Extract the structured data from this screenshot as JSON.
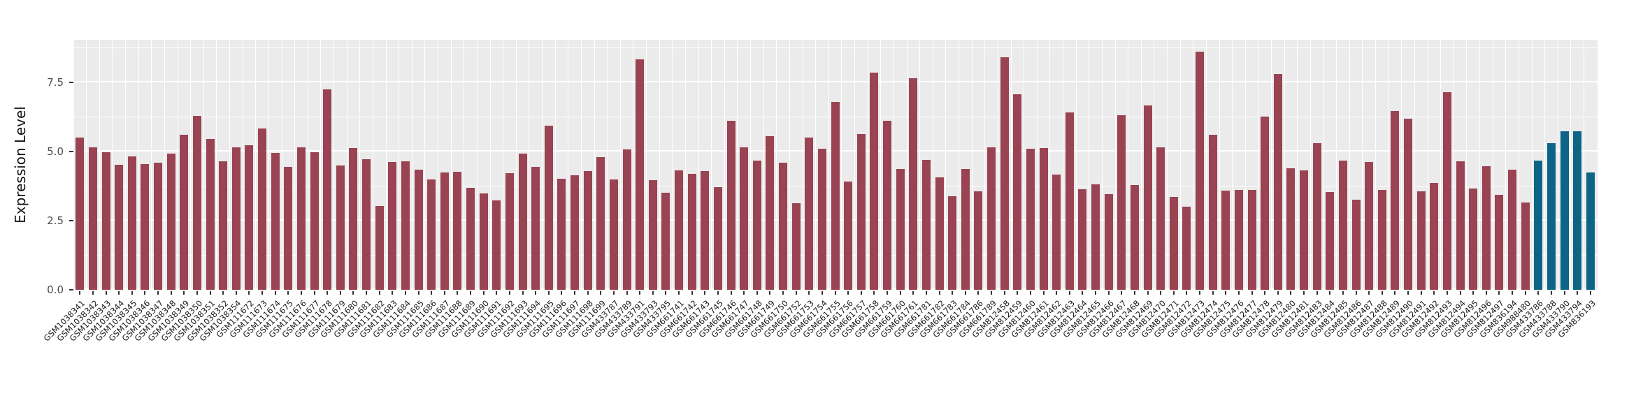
{
  "chart_data": {
    "type": "bar",
    "title": "",
    "xlabel": "",
    "ylabel": "Expression Level",
    "ylim": [
      0,
      9.05
    ],
    "grid": true,
    "legend": false,
    "panel_background": "#EBEBEB",
    "gridline_color": "#FFFFFF",
    "colors": {
      "default": "#9A4352",
      "highlight": "#0C6586"
    },
    "yticks": [
      {
        "label": "0.0",
        "value": 0
      },
      {
        "label": "2.5",
        "value": 2.5
      },
      {
        "label": "5.0",
        "value": 5
      },
      {
        "label": "7.5",
        "value": 7.5
      }
    ],
    "minor_gridlines": [
      1.25,
      3.75,
      6.25,
      8.75
    ],
    "highlighted_categories": [
      "GSM433786",
      "GSM433788",
      "GSM433790",
      "GSM433794",
      "GSM836193"
    ],
    "categories": [
      "GSM1038341",
      "GSM1038342",
      "GSM1038343",
      "GSM1038344",
      "GSM1038345",
      "GSM1038346",
      "GSM1038347",
      "GSM1038348",
      "GSM1038349",
      "GSM1038350",
      "GSM1038351",
      "GSM1038352",
      "GSM1038354",
      "GSM111672",
      "GSM111673",
      "GSM111674",
      "GSM111675",
      "GSM111676",
      "GSM111677",
      "GSM111678",
      "GSM111679",
      "GSM111680",
      "GSM111681",
      "GSM111682",
      "GSM111683",
      "GSM111684",
      "GSM111685",
      "GSM111686",
      "GSM111687",
      "GSM111688",
      "GSM111689",
      "GSM111690",
      "GSM111691",
      "GSM111692",
      "GSM111693",
      "GSM111694",
      "GSM111695",
      "GSM111696",
      "GSM111697",
      "GSM111698",
      "GSM111699",
      "GSM433787",
      "GSM433789",
      "GSM433791",
      "GSM433793",
      "GSM433795",
      "GSM661741",
      "GSM661742",
      "GSM661743",
      "GSM661745",
      "GSM661746",
      "GSM661747",
      "GSM661748",
      "GSM661749",
      "GSM661750",
      "GSM661752",
      "GSM661753",
      "GSM661754",
      "GSM661755",
      "GSM661756",
      "GSM661757",
      "GSM661758",
      "GSM661759",
      "GSM661760",
      "GSM661761",
      "GSM661781",
      "GSM661782",
      "GSM661783",
      "GSM661784",
      "GSM661786",
      "GSM661789",
      "GSM812458",
      "GSM812459",
      "GSM812460",
      "GSM812461",
      "GSM812462",
      "GSM812463",
      "GSM812464",
      "GSM812465",
      "GSM812466",
      "GSM812467",
      "GSM812468",
      "GSM812469",
      "GSM812470",
      "GSM812471",
      "GSM812472",
      "GSM812473",
      "GSM812474",
      "GSM812475",
      "GSM812476",
      "GSM812477",
      "GSM812478",
      "GSM812479",
      "GSM812480",
      "GSM812481",
      "GSM812483",
      "GSM812484",
      "GSM812485",
      "GSM812486",
      "GSM812487",
      "GSM812488",
      "GSM812489",
      "GSM812490",
      "GSM812491",
      "GSM812492",
      "GSM812493",
      "GSM812494",
      "GSM812495",
      "GSM812496",
      "GSM812497",
      "GSM836194",
      "GSM988480",
      "GSM433786",
      "GSM433788",
      "GSM433790",
      "GSM433794",
      "GSM836193"
    ],
    "values": [
      5.52,
      5.17,
      4.99,
      4.53,
      4.82,
      4.56,
      4.61,
      4.92,
      5.62,
      6.3,
      5.46,
      4.66,
      5.16,
      5.24,
      5.84,
      4.96,
      4.44,
      5.15,
      4.97,
      7.25,
      4.49,
      5.14,
      4.74,
      3.03,
      4.63,
      4.66,
      4.35,
      4.0,
      4.25,
      4.27,
      3.68,
      3.5,
      3.23,
      4.22,
      4.92,
      4.46,
      5.94,
      4.02,
      4.15,
      4.3,
      4.81,
      4.0,
      5.09,
      8.35,
      3.98,
      3.51,
      4.33,
      4.19,
      4.29,
      3.71,
      6.13,
      5.15,
      4.67,
      5.57,
      4.6,
      3.14,
      5.51,
      5.11,
      6.8,
      3.93,
      5.65,
      7.85,
      6.13,
      4.38,
      7.65,
      4.7,
      4.06,
      3.4,
      4.38,
      3.56,
      5.16,
      8.41,
      7.09,
      5.11,
      5.13,
      4.17,
      6.42,
      3.65,
      3.81,
      3.46,
      6.32,
      3.79,
      6.67,
      5.16,
      3.36,
      3.01,
      8.63,
      5.6,
      3.58,
      3.61,
      3.61,
      6.27,
      7.82,
      4.39,
      4.32,
      5.32,
      3.53,
      4.68,
      3.27,
      4.63,
      3.62,
      6.46,
      6.2,
      3.56,
      3.87,
      7.15,
      4.66,
      3.67,
      4.48,
      3.44,
      4.36,
      3.15,
      4.68,
      5.32,
      5.75,
      5.75,
      4.25
    ]
  }
}
